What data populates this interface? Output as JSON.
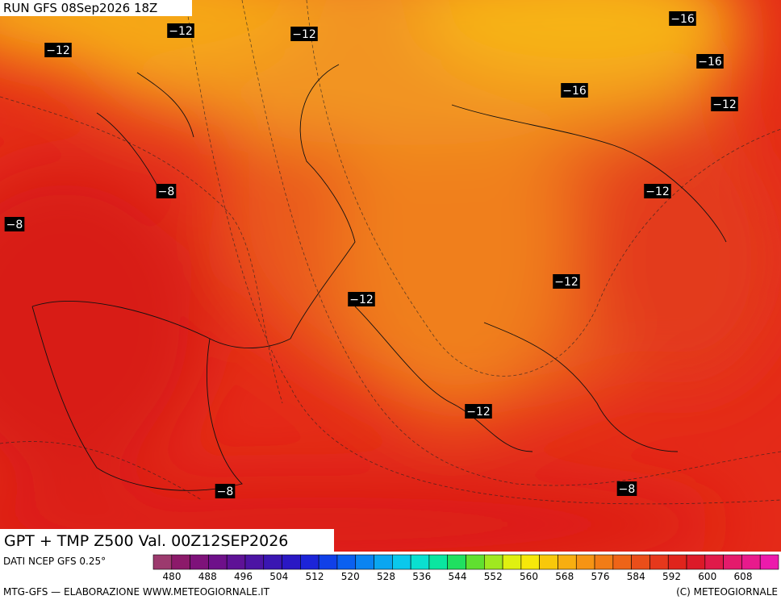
{
  "header": {
    "run": "RUN GFS 08Sep2026 18Z"
  },
  "contour_labels": [
    "−12",
    "−12",
    "−12",
    "−16",
    "−16",
    "−16",
    "−12",
    "−8",
    "−8",
    "−12",
    "−12",
    "−12",
    "−12",
    "−8",
    "−8"
  ],
  "footer": {
    "title": "GPT + TMP Z500 Val. 00Z12SEP2026",
    "source": "DATI NCEP GFS 0.25°",
    "credit": "MTG-GFS — ELABORAZIONE WWW.METEOGIORNALE.IT",
    "copyright": "(C) METEOGIORNALE"
  },
  "legend": {
    "ticks": [
      480,
      488,
      496,
      504,
      512,
      520,
      528,
      536,
      544,
      552,
      560,
      568,
      576,
      584,
      592,
      600,
      608
    ]
  }
}
